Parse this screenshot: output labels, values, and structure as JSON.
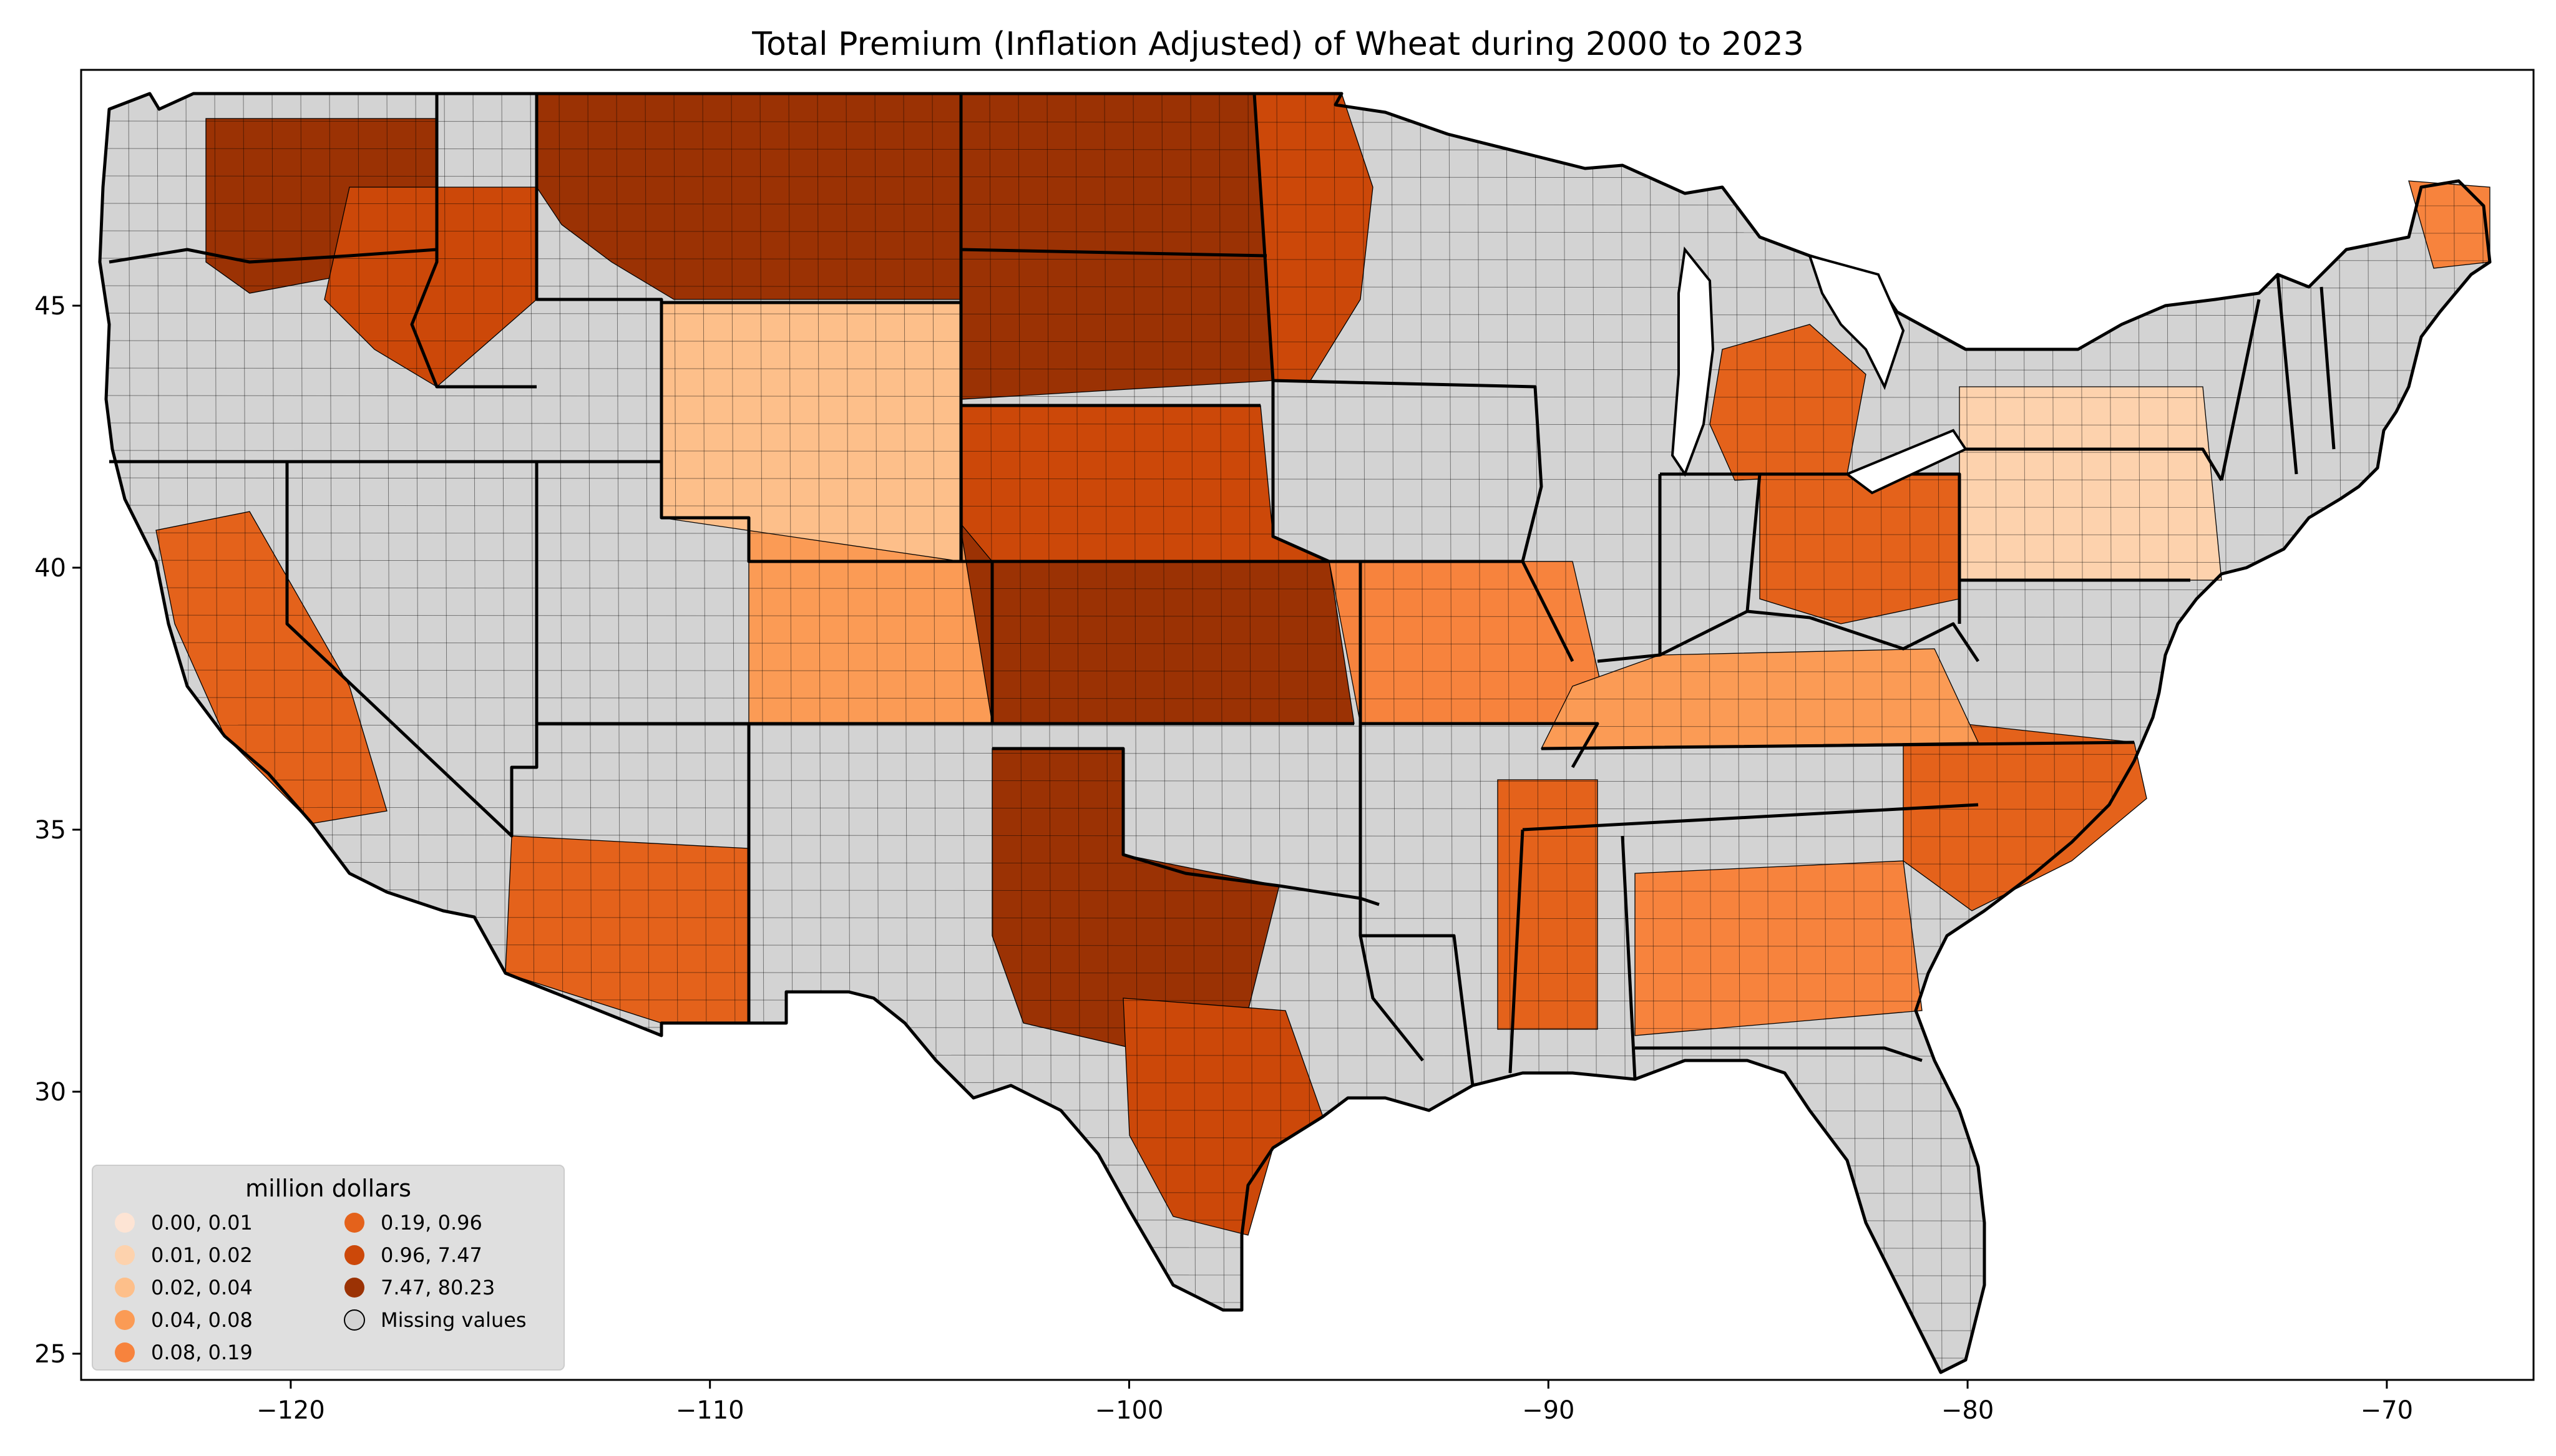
{
  "title": "Total  Premium  (Inflation Adjusted) of Wheat during 2000 to 2023",
  "colors": {
    "missing": "#d3d3d3",
    "bins": [
      "#fde4d4",
      "#fdd2ad",
      "#fdbf8a",
      "#fb9b55",
      "#f7833d",
      "#e4621b",
      "#cc4809",
      "#9b3204"
    ],
    "legend_bg": "#dcdcdc"
  },
  "axes": {
    "x_ticks": [
      "−120",
      "−110",
      "−100",
      "−90",
      "−80",
      "−70"
    ],
    "y_ticks": [
      "45",
      "40",
      "35",
      "30",
      "25"
    ],
    "xlim": [
      -125,
      -66.5
    ],
    "ylim": [
      24.5,
      49.5
    ]
  },
  "legend": {
    "title": "million dollars",
    "items": [
      {
        "label": "0.00,  0.01",
        "color_index": 0
      },
      {
        "label": "0.01,  0.02",
        "color_index": 1
      },
      {
        "label": "0.02,  0.04",
        "color_index": 2
      },
      {
        "label": "0.04,  0.08",
        "color_index": 3
      },
      {
        "label": "0.08,  0.19",
        "color_index": 4
      },
      {
        "label": "0.19,  0.96",
        "color_index": 5
      },
      {
        "label": "0.96,  7.47",
        "color_index": 6
      },
      {
        "label": "7.47, 80.23",
        "color_index": 7
      },
      {
        "label": "Missing values",
        "color_index": -1
      }
    ]
  },
  "regions": [
    {
      "name": "pacific-northwest-interior",
      "bin": 7
    },
    {
      "name": "montana-plains",
      "bin": 7
    },
    {
      "name": "dakotas",
      "bin": 7
    },
    {
      "name": "kansas",
      "bin": 7
    },
    {
      "name": "oklahoma-texas-panhandle",
      "bin": 7
    },
    {
      "name": "nebraska",
      "bin": 6
    },
    {
      "name": "minnesota-west",
      "bin": 6
    },
    {
      "name": "central-texas",
      "bin": 6
    },
    {
      "name": "idaho-oregon",
      "bin": 6
    },
    {
      "name": "michigan",
      "bin": 5
    },
    {
      "name": "ohio-indiana",
      "bin": 5
    },
    {
      "name": "missouri-illinois",
      "bin": 4
    },
    {
      "name": "carolinas-virginia",
      "bin": 5
    },
    {
      "name": "mississippi-delta",
      "bin": 5
    },
    {
      "name": "georgia-alabama",
      "bin": 4
    },
    {
      "name": "pennsylvania-newyork",
      "bin": 1
    },
    {
      "name": "california-central",
      "bin": 5
    },
    {
      "name": "arizona",
      "bin": 5
    },
    {
      "name": "colorado",
      "bin": 3
    },
    {
      "name": "wyoming-utah",
      "bin": 2
    },
    {
      "name": "maine",
      "bin": 4
    },
    {
      "name": "kentucky-tennessee",
      "bin": 3
    }
  ]
}
